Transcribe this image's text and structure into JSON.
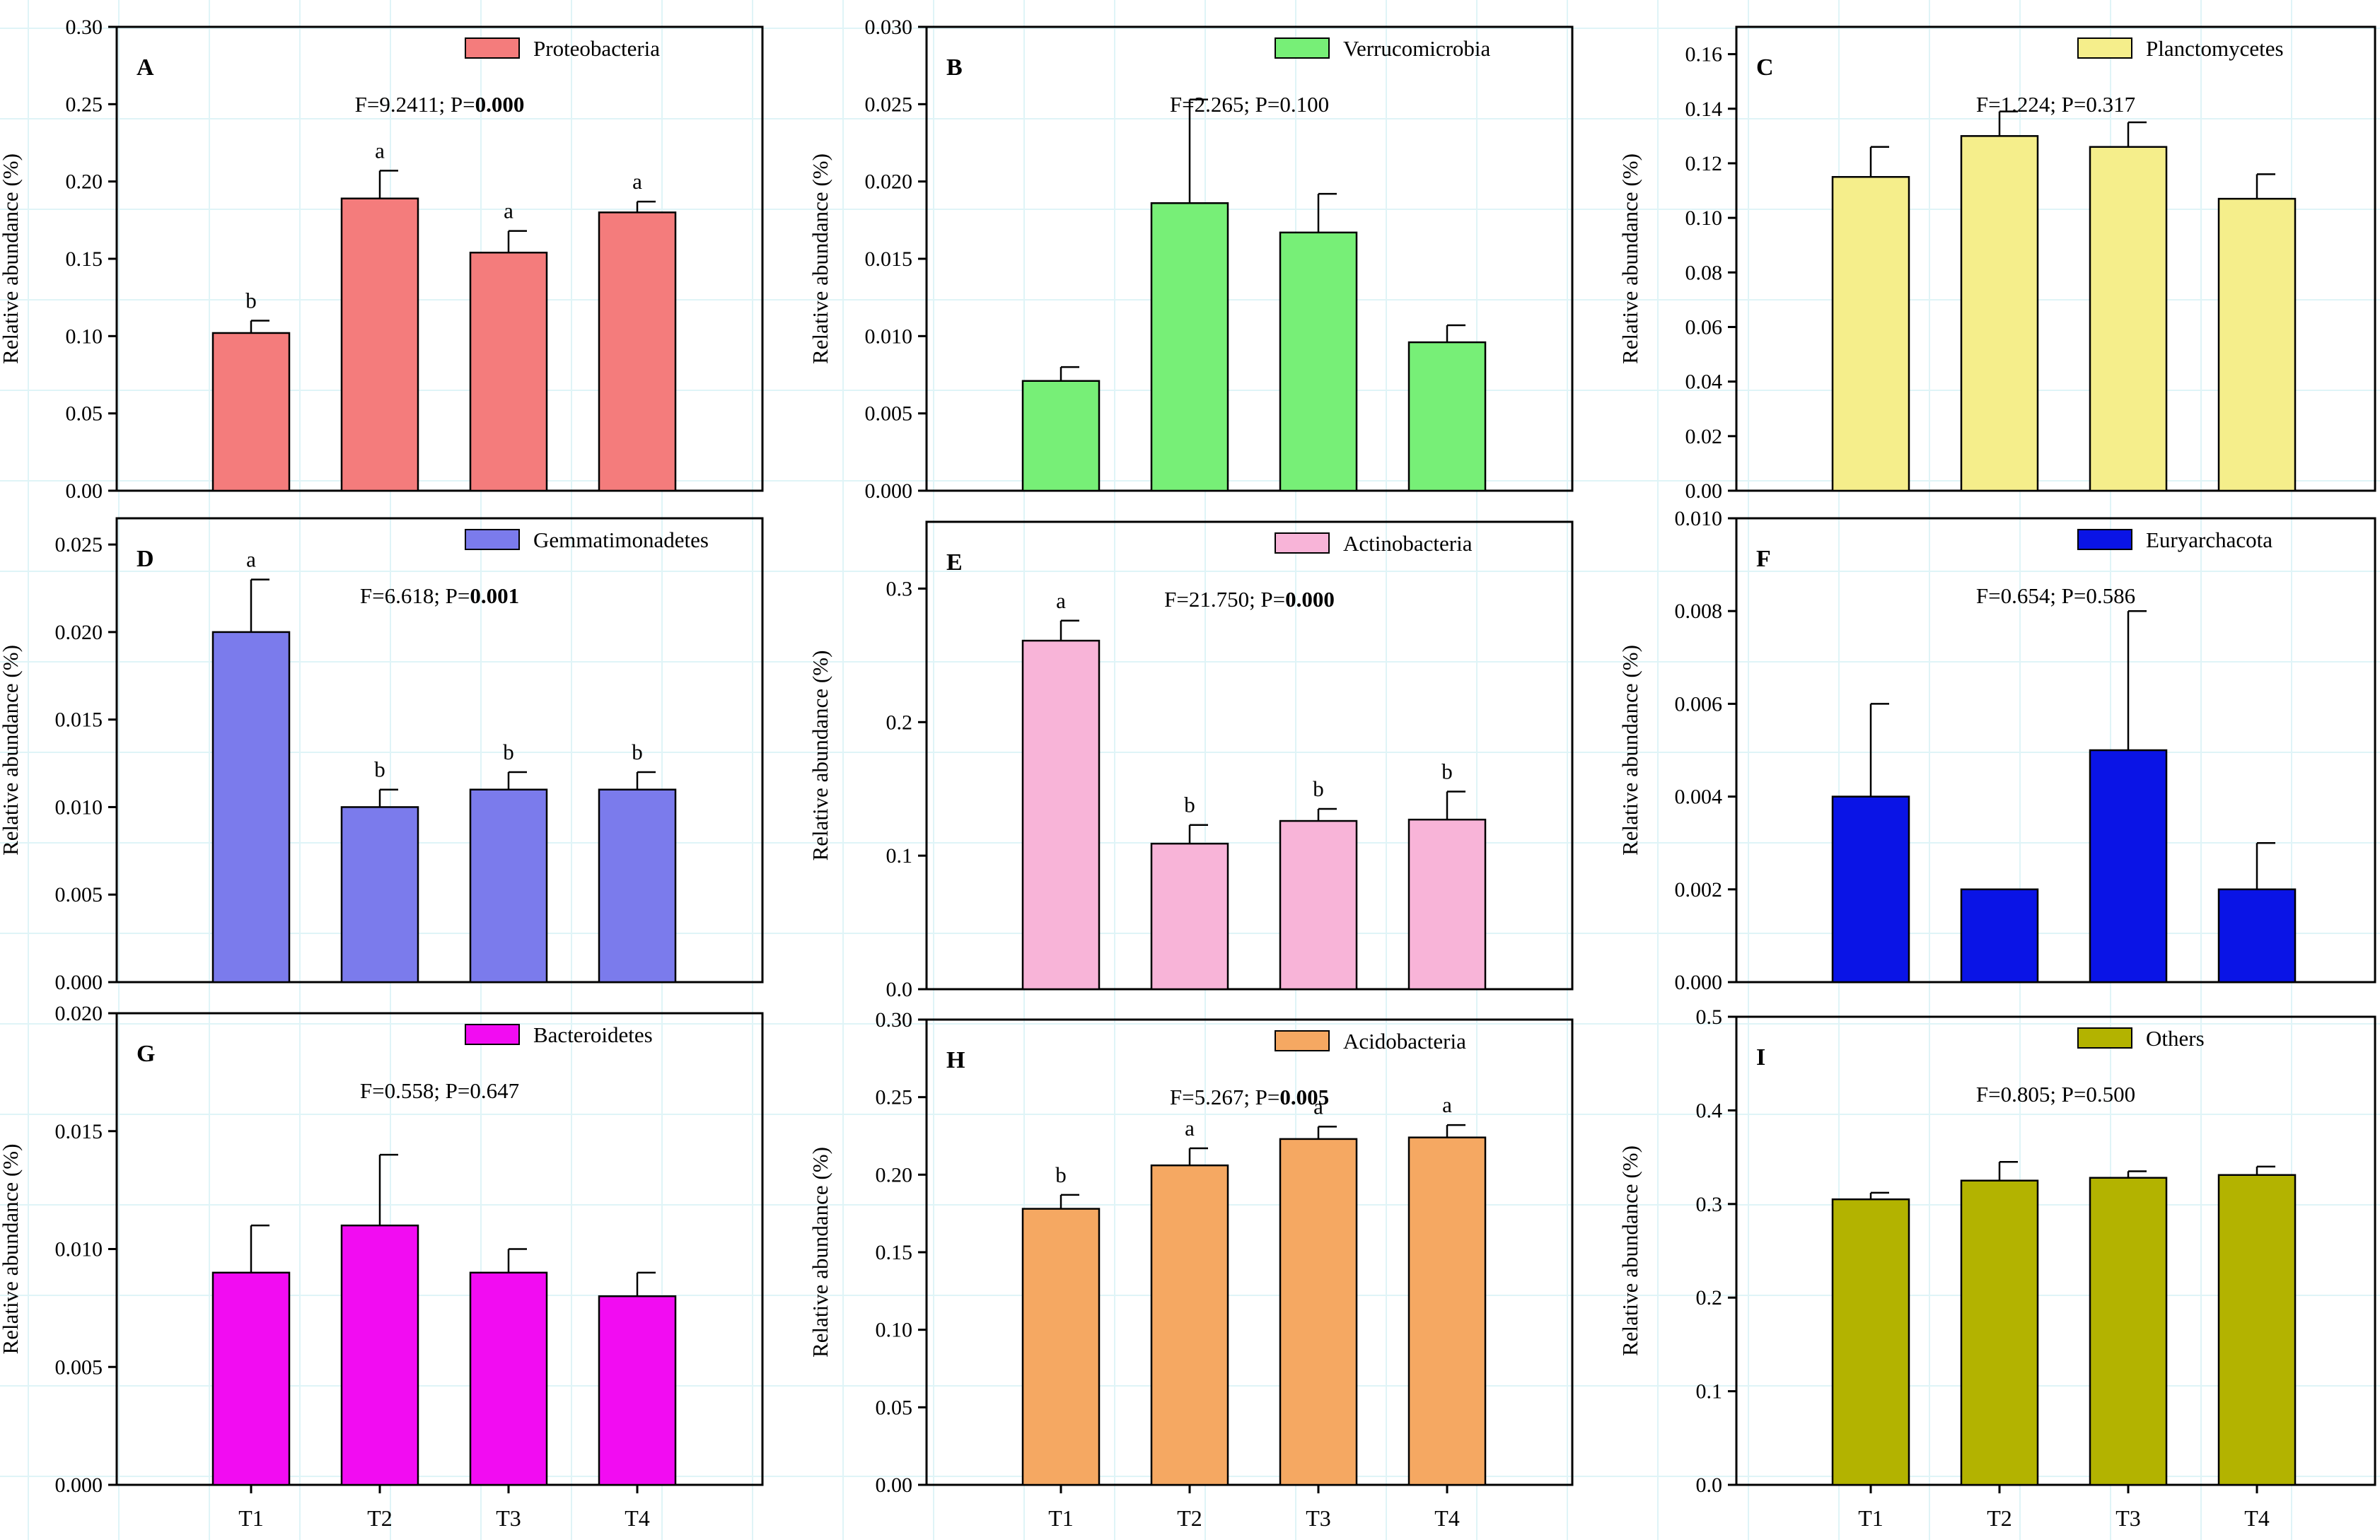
{
  "categories": [
    "T1",
    "T2",
    "T3",
    "T4"
  ],
  "ylabel": "Relative abundance (%)",
  "chart_data": [
    {
      "type": "bar",
      "panel": "A",
      "title": "Proteobacteria",
      "color": "#f47c7c",
      "categories": [
        "T1",
        "T2",
        "T3",
        "T4"
      ],
      "values": [
        0.102,
        0.189,
        0.154,
        0.18
      ],
      "errors": [
        0.008,
        0.018,
        0.014,
        0.007
      ],
      "sig": [
        "b",
        "a",
        "a",
        "a"
      ],
      "stat_prefix": "F=9.2411; P=",
      "p_value": "0.000",
      "p_bold": true,
      "ylim": [
        0,
        0.3
      ],
      "ticks": [
        "0.00",
        "0.05",
        "0.10",
        "0.15",
        "0.20",
        "0.25",
        "0.30"
      ],
      "ylabel": "Relative abundance (%)",
      "show_xlabels": false
    },
    {
      "type": "bar",
      "panel": "B",
      "title": "Verrucomicrobia",
      "color": "#77ef77",
      "categories": [
        "T1",
        "T2",
        "T3",
        "T4"
      ],
      "values": [
        0.0071,
        0.0186,
        0.0167,
        0.0096
      ],
      "errors": [
        0.0009,
        0.0067,
        0.0025,
        0.0011
      ],
      "sig": [
        "",
        "",
        "",
        ""
      ],
      "stat_prefix": "F=2.265; P=",
      "p_value": "0.100",
      "p_bold": false,
      "ylim": [
        0,
        0.03
      ],
      "ticks": [
        "0.000",
        "0.005",
        "0.010",
        "0.015",
        "0.020",
        "0.025",
        "0.030"
      ],
      "ylabel": "Relative abundance (%)",
      "show_xlabels": false
    },
    {
      "type": "bar",
      "panel": "C",
      "title": "Planctomycetes",
      "color": "#f5ee8b",
      "categories": [
        "T1",
        "T2",
        "T3",
        "T4"
      ],
      "values": [
        0.115,
        0.13,
        0.126,
        0.107
      ],
      "errors": [
        0.011,
        0.009,
        0.009,
        0.009
      ],
      "sig": [
        "",
        "",
        "",
        ""
      ],
      "stat_prefix": "F=1.224; P=",
      "p_value": "0.317",
      "p_bold": false,
      "ylim": [
        0,
        0.17
      ],
      "ticks": [
        "0.00",
        "0.02",
        "0.04",
        "0.06",
        "0.08",
        "0.10",
        "0.12",
        "0.14",
        "0.16"
      ],
      "ylabel": "Relative abundance (%)",
      "show_xlabels": false
    },
    {
      "type": "bar",
      "panel": "D",
      "title": "Gemmatimonadetes",
      "color": "#7b7bec",
      "categories": [
        "T1",
        "T2",
        "T3",
        "T4"
      ],
      "values": [
        0.02,
        0.01,
        0.011,
        0.011
      ],
      "errors": [
        0.003,
        0.001,
        0.001,
        0.001
      ],
      "sig": [
        "a",
        "b",
        "b",
        "b"
      ],
      "stat_prefix": "F=6.618; P=",
      "p_value": "0.001",
      "p_bold": true,
      "ylim": [
        0,
        0.0265
      ],
      "ticks": [
        "0.000",
        "0.005",
        "0.010",
        "0.015",
        "0.020",
        "0.025"
      ],
      "ylabel": "Relative abundance (%)",
      "show_xlabels": false
    },
    {
      "type": "bar",
      "panel": "E",
      "title": "Actinobacteria",
      "color": "#f8b4d8",
      "categories": [
        "T1",
        "T2",
        "T3",
        "T4"
      ],
      "values": [
        0.261,
        0.109,
        0.126,
        0.127
      ],
      "errors": [
        0.015,
        0.014,
        0.009,
        0.021
      ],
      "sig": [
        "a",
        "b",
        "b",
        "b"
      ],
      "stat_prefix": "F=21.750; P=",
      "p_value": "0.000",
      "p_bold": true,
      "ylim": [
        0,
        0.35
      ],
      "ticks": [
        "0.0",
        "0.1",
        "0.2",
        "0.3"
      ],
      "ylabel": "Relative abundance (%)",
      "show_xlabels": false
    },
    {
      "type": "bar",
      "panel": "F",
      "title": "Euryarchacota",
      "color": "#0a14e6",
      "categories": [
        "T1",
        "T2",
        "T3",
        "T4"
      ],
      "values": [
        0.004,
        0.002,
        0.005,
        0.002
      ],
      "errors": [
        0.002,
        0,
        0.003,
        0.001
      ],
      "sig": [
        "",
        "",
        "",
        ""
      ],
      "stat_prefix": "F=0.654; P=",
      "p_value": "0.586",
      "p_bold": false,
      "ylim": [
        0,
        0.01
      ],
      "ticks": [
        "0.000",
        "0.002",
        "0.004",
        "0.006",
        "0.008",
        "0.010"
      ],
      "ylabel": "Relative abundance (%)",
      "show_xlabels": false
    },
    {
      "type": "bar",
      "panel": "G",
      "title": "Bacteroidetes",
      "color": "#f20cf2",
      "categories": [
        "T1",
        "T2",
        "T3",
        "T4"
      ],
      "values": [
        0.009,
        0.011,
        0.009,
        0.008
      ],
      "errors": [
        0.002,
        0.003,
        0.001,
        0.001
      ],
      "sig": [
        "",
        "",
        "",
        ""
      ],
      "stat_prefix": "F=0.558; P=",
      "p_value": "0.647",
      "p_bold": false,
      "ylim": [
        0,
        0.02
      ],
      "ticks": [
        "0.000",
        "0.005",
        "0.010",
        "0.015",
        "0.020"
      ],
      "ylabel": "Relative abundance (%)",
      "show_xlabels": true
    },
    {
      "type": "bar",
      "panel": "H",
      "title": "Acidobacteria",
      "color": "#f5a862",
      "categories": [
        "T1",
        "T2",
        "T3",
        "T4"
      ],
      "values": [
        0.178,
        0.206,
        0.223,
        0.224
      ],
      "errors": [
        0.009,
        0.011,
        0.008,
        0.008
      ],
      "sig": [
        "b",
        "a",
        "a",
        "a"
      ],
      "stat_prefix": "F=5.267; P=",
      "p_value": "0.005",
      "p_bold": true,
      "ylim": [
        0,
        0.3
      ],
      "ticks": [
        "0.00",
        "0.05",
        "0.10",
        "0.15",
        "0.20",
        "0.25",
        "0.30"
      ],
      "ylabel": "Relative abundance (%)",
      "show_xlabels": true
    },
    {
      "type": "bar",
      "panel": "I",
      "title": "Others",
      "color": "#b3b300",
      "categories": [
        "T1",
        "T2",
        "T3",
        "T4"
      ],
      "values": [
        0.305,
        0.325,
        0.328,
        0.331
      ],
      "errors": [
        0.007,
        0.02,
        0.007,
        0.009
      ],
      "sig": [
        "",
        "",
        "",
        ""
      ],
      "stat_prefix": "F=0.805; P=",
      "p_value": "0.500",
      "p_bold": false,
      "ylim": [
        0,
        0.5
      ],
      "ticks": [
        "0.0",
        "0.1",
        "0.2",
        "0.3",
        "0.4",
        "0.5"
      ],
      "ylabel": "Relative abundance (%)",
      "show_xlabels": true
    }
  ]
}
